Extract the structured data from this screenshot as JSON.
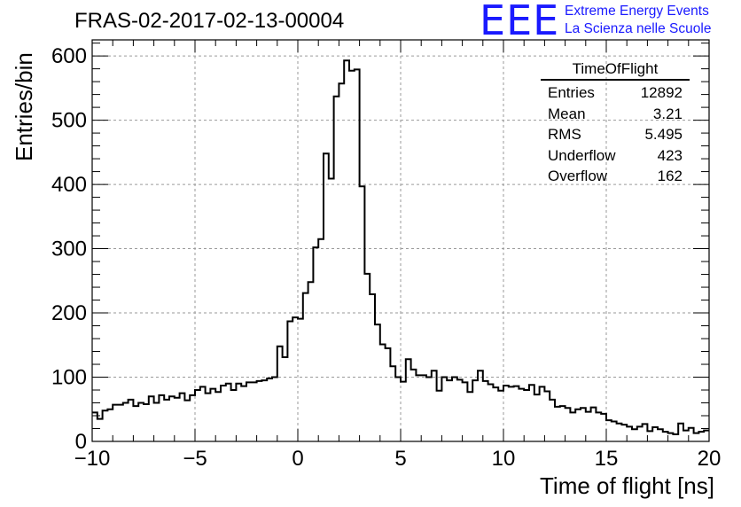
{
  "header": {
    "run_id": "FRAS-02-2017-02-13-00004",
    "logo_text": "EEE",
    "logo_line1": "Extreme Energy Events",
    "logo_line2": "La Scienza nelle Scuole",
    "logo_color": "#1a1aff"
  },
  "stats_box": {
    "title": "TimeOfFlight",
    "rows": [
      {
        "label": "Entries",
        "value": "12892"
      },
      {
        "label": "Mean",
        "value": "3.21"
      },
      {
        "label": "RMS",
        "value": "5.495"
      },
      {
        "label": "Underflow",
        "value": "423"
      },
      {
        "label": "Overflow",
        "value": "162"
      }
    ]
  },
  "chart_data": {
    "type": "histogram",
    "title": "",
    "xlabel": "Time of flight [ns]",
    "ylabel": "Entries/bin",
    "xlim": [
      -10,
      20
    ],
    "ylim": [
      0,
      625
    ],
    "xticks": [
      -10,
      -5,
      0,
      5,
      10,
      15,
      20
    ],
    "yticks": [
      0,
      100,
      200,
      300,
      400,
      500,
      600
    ],
    "grid": true,
    "bin_width": 0.25,
    "series": [
      {
        "color": "#000000",
        "values": [
          45,
          35,
          48,
          50,
          57,
          57,
          60,
          65,
          55,
          60,
          58,
          70,
          60,
          72,
          65,
          70,
          68,
          75,
          64,
          72,
          80,
          85,
          75,
          82,
          77,
          87,
          90,
          80,
          90,
          86,
          92,
          92,
          94,
          95,
          98,
          100,
          148,
          131,
          187,
          193,
          191,
          231,
          248,
          302,
          315,
          448,
          409,
          537,
          557,
          593,
          577,
          579,
          397,
          261,
          229,
          182,
          151,
          145,
          117,
          100,
          93,
          128,
          112,
          103,
          103,
          100,
          110,
          79,
          100,
          95,
          100,
          96,
          92,
          77,
          95,
          110,
          94,
          89,
          84,
          79,
          87,
          85,
          86,
          82,
          80,
          88,
          73,
          85,
          78,
          65,
          54,
          55,
          52,
          45,
          50,
          52,
          46,
          53,
          45,
          43,
          33,
          31,
          28,
          26,
          23,
          19,
          23,
          27,
          16,
          22,
          19,
          15,
          13,
          11,
          28,
          17,
          21,
          13,
          15,
          17
        ]
      }
    ]
  }
}
